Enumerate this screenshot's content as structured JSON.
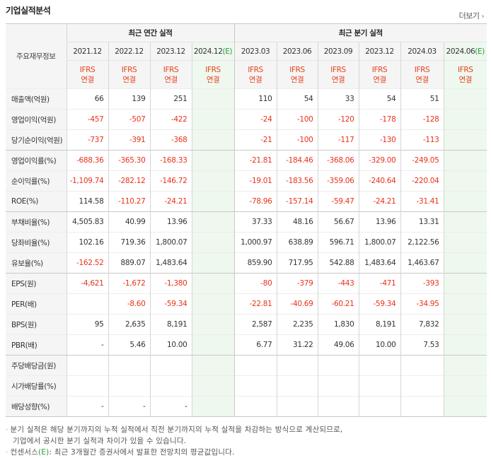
{
  "header": {
    "title": "기업실적분석",
    "more_label": "더보기"
  },
  "table": {
    "corner_label": "주요재무정보",
    "group_annual": "최근 연간 실적",
    "group_quarter": "최근 분기 실적",
    "ifrs_line1": "IFRS",
    "ifrs_line2": "연결",
    "estimate_mark": "(E)",
    "annual_periods": [
      "2021.12",
      "2022.12",
      "2023.12",
      "2024.12"
    ],
    "quarter_periods": [
      "2023.03",
      "2023.06",
      "2023.09",
      "2023.12",
      "2024.03",
      "2024.06"
    ],
    "rows": [
      {
        "label": "매출액(억원)",
        "annual": [
          "66",
          "139",
          "251",
          ""
        ],
        "quarter": [
          "110",
          "54",
          "33",
          "54",
          "51",
          ""
        ]
      },
      {
        "label": "영업이익(억원)",
        "annual": [
          "-457",
          "-507",
          "-422",
          ""
        ],
        "quarter": [
          "-24",
          "-100",
          "-120",
          "-178",
          "-128",
          ""
        ]
      },
      {
        "label": "당기순이익(억원)",
        "annual": [
          "-737",
          "-391",
          "-368",
          ""
        ],
        "quarter": [
          "-21",
          "-100",
          "-117",
          "-130",
          "-113",
          ""
        ]
      },
      {
        "label": "영업이익률(%)",
        "annual": [
          "-688.36",
          "-365.30",
          "-168.33",
          ""
        ],
        "quarter": [
          "-21.81",
          "-184.46",
          "-368.06",
          "-329.00",
          "-249.05",
          ""
        ]
      },
      {
        "label": "순이익률(%)",
        "annual": [
          "-1,109.74",
          "-282.12",
          "-146.72",
          ""
        ],
        "quarter": [
          "-19.01",
          "-183.56",
          "-359.06",
          "-240.64",
          "-220.04",
          ""
        ]
      },
      {
        "label": "ROE(%)",
        "annual": [
          "114.58",
          "-110.27",
          "-24.21",
          ""
        ],
        "quarter": [
          "-78.96",
          "-157.14",
          "-59.47",
          "-24.21",
          "-31.41",
          ""
        ]
      },
      {
        "label": "부채비율(%)",
        "annual": [
          "4,505.83",
          "40.99",
          "13.96",
          ""
        ],
        "quarter": [
          "37.33",
          "48.16",
          "56.67",
          "13.96",
          "13.31",
          ""
        ]
      },
      {
        "label": "당좌비율(%)",
        "annual": [
          "102.16",
          "719.36",
          "1,800.07",
          ""
        ],
        "quarter": [
          "1,000.97",
          "638.89",
          "596.71",
          "1,800.07",
          "2,122.56",
          ""
        ]
      },
      {
        "label": "유보율(%)",
        "annual": [
          "-162.52",
          "889.07",
          "1,483.64",
          ""
        ],
        "quarter": [
          "859.90",
          "717.95",
          "542.88",
          "1,483.64",
          "1,463.67",
          ""
        ]
      },
      {
        "label": "EPS(원)",
        "annual": [
          "-4,621",
          "-1,672",
          "-1,380",
          ""
        ],
        "quarter": [
          "-80",
          "-379",
          "-443",
          "-471",
          "-393",
          ""
        ]
      },
      {
        "label": "PER(배)",
        "annual": [
          "",
          "-8.60",
          "-59.34",
          ""
        ],
        "quarter": [
          "-22.81",
          "-40.69",
          "-60.21",
          "-59.34",
          "-34.95",
          ""
        ]
      },
      {
        "label": "BPS(원)",
        "annual": [
          "95",
          "2,635",
          "8,191",
          ""
        ],
        "quarter": [
          "2,587",
          "2,235",
          "1,830",
          "8,191",
          "7,832",
          ""
        ]
      },
      {
        "label": "PBR(배)",
        "annual": [
          "-",
          "5.46",
          "10.00",
          ""
        ],
        "quarter": [
          "6.77",
          "31.22",
          "49.06",
          "10.00",
          "7.53",
          ""
        ]
      },
      {
        "label": "주당배당금(원)",
        "annual": [
          "",
          "",
          "",
          ""
        ],
        "quarter": [
          "",
          "",
          "",
          "",
          "",
          ""
        ]
      },
      {
        "label": "시가배당률(%)",
        "annual": [
          "",
          "",
          "",
          ""
        ],
        "quarter": [
          "",
          "",
          "",
          "",
          "",
          ""
        ]
      },
      {
        "label": "배당성향(%)",
        "annual": [
          "-",
          "-",
          "-",
          ""
        ],
        "quarter": [
          "",
          "",
          "",
          "",
          "",
          ""
        ]
      }
    ]
  },
  "notes": {
    "line1": "분기 실적은 해당 분기까지의 누적 실적에서 직전 분기까지의 누적 실적을 차감하는 방식으로 계산되므로,",
    "line2": "기업에서 공시한 분기 실적과 차이가 있을 수 있습니다.",
    "line3_prefix": "컨센서스",
    "line3_suffix": ": 최근 3개월간 증권사에서 발표한 전망치의 평균값입니다."
  },
  "colors": {
    "negative": "#e8311a",
    "ifrs": "#e8411a",
    "estimate": "#2f9a3a",
    "header_bg": "#f5f5f5"
  }
}
